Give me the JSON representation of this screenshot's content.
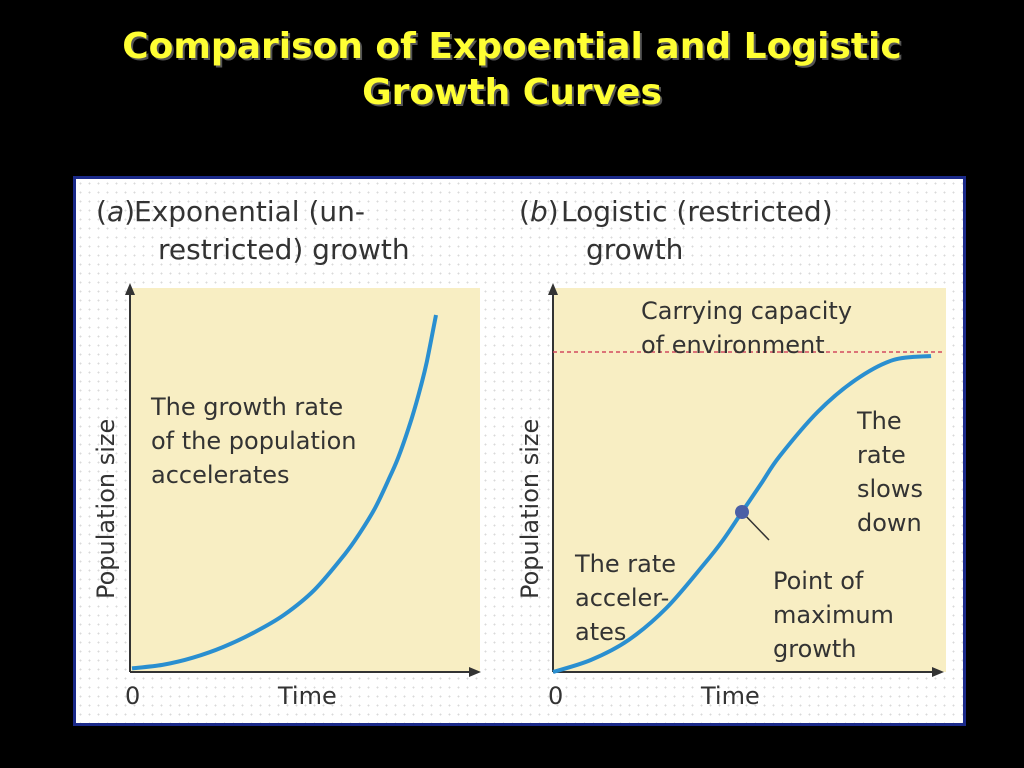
{
  "slide": {
    "title_line1": "Comparison of Expoential and Logistic",
    "title_line2": "Growth Curves"
  },
  "colors": {
    "background": "#000000",
    "title": "#ffff33",
    "plot_fill": "#f8eec3",
    "curve": "#2a8fd0",
    "capacity_line": "#d24a5f",
    "point": "#4b5fa6",
    "border": "#1b2a8a"
  },
  "chart_data": [
    {
      "type": "line",
      "panel_letter": "a",
      "title_line1": "Exponential (un-",
      "title_line2": "restricted) growth",
      "xlabel": "Time",
      "ylabel": "Population size",
      "x_tick": "0",
      "annotations": [
        {
          "id": "growth-rate-label",
          "lines": [
            "The growth rate",
            "of the population",
            "accelerates"
          ]
        }
      ],
      "series": [
        {
          "x": [
            0,
            0.1,
            0.2,
            0.3,
            0.4,
            0.5,
            0.6,
            0.7,
            0.75,
            0.8,
            0.85,
            0.88,
            0.92,
            0.95,
            0.97,
            1.0
          ],
          "y": [
            0.01,
            0.02,
            0.04,
            0.07,
            0.11,
            0.16,
            0.23,
            0.33,
            0.39,
            0.46,
            0.55,
            0.61,
            0.71,
            0.8,
            0.87,
            1.0
          ]
        }
      ]
    },
    {
      "type": "line",
      "panel_letter": "b",
      "title_line1": "Logistic (restricted)",
      "title_line2": "growth",
      "xlabel": "Time",
      "ylabel": "Population size",
      "x_tick": "0",
      "carrying_capacity_y": 0.8,
      "annotations": [
        {
          "id": "carrying-capacity-label",
          "lines": [
            "Carrying capacity",
            "of environment"
          ]
        },
        {
          "id": "rate-slows-label",
          "lines": [
            "The",
            "rate",
            "slows",
            "down"
          ]
        },
        {
          "id": "rate-accelerates-label",
          "lines": [
            "The rate",
            "acceler-",
            "ates"
          ]
        },
        {
          "id": "max-growth-label",
          "lines": [
            "Point of",
            "maximum",
            "growth"
          ]
        }
      ],
      "inflection_point": {
        "x": 0.5,
        "y": 0.4
      },
      "series": [
        {
          "x": [
            0,
            0.1,
            0.2,
            0.3,
            0.4,
            0.45,
            0.5,
            0.55,
            0.6,
            0.7,
            0.8,
            0.9,
            1.0
          ],
          "y": [
            0.0,
            0.03,
            0.08,
            0.16,
            0.27,
            0.33,
            0.4,
            0.47,
            0.54,
            0.65,
            0.73,
            0.78,
            0.79
          ]
        }
      ]
    }
  ]
}
